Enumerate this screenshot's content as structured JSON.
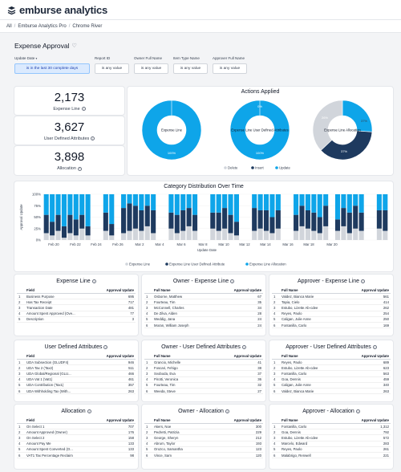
{
  "app": {
    "brand": "emburse analytics"
  },
  "breadcrumbs": [
    "All",
    "Emburse Analytics Pro",
    "Chrome River"
  ],
  "dashboard": {
    "title": "Expense Approval"
  },
  "filters": [
    {
      "label": "Update Date",
      "value": "is in the last 30 complete days",
      "active": true
    },
    {
      "label": "Report ID",
      "value": "is any value"
    },
    {
      "label": "Owner Full Name",
      "value": "is any value"
    },
    {
      "label": "Item Type Name",
      "value": "is any value"
    },
    {
      "label": "Approver Full Name",
      "value": "is any value"
    }
  ],
  "kpis": [
    {
      "value": "2,173",
      "label": "Expense Line"
    },
    {
      "value": "3,627",
      "label": "User Defined Attributes"
    },
    {
      "value": "3,898",
      "label": "Allocation"
    }
  ],
  "actions_applied": {
    "title": "Actions Applied",
    "legend": [
      "Delete",
      "Insert",
      "Update"
    ],
    "colors": {
      "Delete": "#d1d5db",
      "Insert": "#1e3a5f",
      "Update": "#0ea5e9"
    },
    "donuts": [
      {
        "name": "Expense Line",
        "delete": 0,
        "insert": 0,
        "update": 100,
        "labels": {
          "update": "100%"
        }
      },
      {
        "name": "Expense Line User Defined Attributes",
        "delete": 0,
        "insert": 0,
        "update": 100,
        "labels": {
          "update": "100%",
          "top": "0%"
        }
      },
      {
        "name": "Expense Line Allocation",
        "delete": 37,
        "insert": 37,
        "update": 26,
        "labels": {
          "update": "26%",
          "insert": "37%",
          "delete": "37%"
        }
      }
    ]
  },
  "chart_data": {
    "type": "bar",
    "title": "Category Distribution Over Time",
    "ylabel": "Approval Update",
    "xlabel": "Update Date",
    "ylim": [
      0,
      100
    ],
    "yticks": [
      "0%",
      "25%",
      "50%",
      "75%",
      "100%"
    ],
    "xticks": [
      "Feb 20",
      "Feb 22",
      "Feb 24",
      "Feb 26",
      "Mar 2",
      "Mar 4",
      "Mar 6",
      "Mar 8",
      "Mar 10",
      "Mar 12",
      "Mar 14",
      "Mar 16",
      "Mar 18",
      "Mar 20"
    ],
    "stacked": true,
    "percent": true,
    "series": [
      {
        "name": "Expense Line",
        "color": "#d1d5db"
      },
      {
        "name": "Expense Line User Defined Attribute",
        "color": "#1e3a5f"
      },
      {
        "name": "Expense Line Allocation",
        "color": "#0ea5e9"
      }
    ],
    "bars": [
      [
        15,
        40,
        45
      ],
      [
        10,
        30,
        60
      ],
      [
        20,
        35,
        45
      ],
      [
        5,
        25,
        70
      ],
      [
        15,
        40,
        45
      ],
      [
        10,
        35,
        55
      ],
      [
        25,
        30,
        45
      ],
      [
        10,
        20,
        70
      ],
      [
        0,
        0,
        0
      ],
      [
        0,
        0,
        0
      ],
      [
        20,
        40,
        40
      ],
      [
        10,
        25,
        65
      ],
      [
        0,
        0,
        0
      ],
      [
        15,
        55,
        30
      ],
      [
        20,
        60,
        20
      ],
      [
        25,
        50,
        25
      ],
      [
        20,
        45,
        35
      ],
      [
        30,
        45,
        25
      ],
      [
        15,
        50,
        35
      ],
      [
        0,
        0,
        0
      ],
      [
        0,
        0,
        0
      ],
      [
        25,
        35,
        40
      ],
      [
        15,
        40,
        45
      ],
      [
        20,
        45,
        35
      ],
      [
        30,
        40,
        30
      ],
      [
        20,
        35,
        45
      ],
      [
        0,
        0,
        0
      ],
      [
        0,
        0,
        0
      ],
      [
        25,
        35,
        40
      ],
      [
        20,
        40,
        40
      ],
      [
        25,
        45,
        30
      ],
      [
        15,
        40,
        45
      ],
      [
        10,
        30,
        60
      ],
      [
        0,
        0,
        0
      ],
      [
        0,
        0,
        0
      ],
      [
        20,
        50,
        30
      ],
      [
        25,
        40,
        35
      ],
      [
        20,
        45,
        35
      ],
      [
        15,
        35,
        50
      ],
      [
        25,
        40,
        35
      ],
      [
        0,
        0,
        0
      ],
      [
        0,
        0,
        0
      ],
      [
        20,
        35,
        45
      ],
      [
        30,
        45,
        25
      ],
      [
        25,
        40,
        35
      ],
      [
        20,
        40,
        40
      ],
      [
        15,
        35,
        50
      ],
      [
        30,
        45,
        25
      ],
      [
        0,
        0,
        0
      ],
      [
        20,
        25,
        55
      ],
      [
        30,
        40,
        30
      ],
      [
        15,
        45,
        40
      ],
      [
        25,
        50,
        25
      ],
      [
        20,
        40,
        40
      ],
      [
        0,
        0,
        0
      ],
      [
        0,
        0,
        0
      ],
      [
        25,
        40,
        35
      ],
      [
        20,
        45,
        35
      ]
    ]
  },
  "tables": [
    {
      "title": "Expense Line",
      "col1": "Field",
      "col2": "Approval Update",
      "rows": [
        [
          "1",
          "Business Purpose",
          "695"
        ],
        [
          "2",
          "Has Tax Receipt",
          "717"
        ],
        [
          "3",
          "Transaction Date",
          "481"
        ],
        [
          "4",
          "Amount Spent Approved (Ove...",
          "77"
        ],
        [
          "5",
          "Description",
          "3"
        ]
      ]
    },
    {
      "title": "Owner - Expense Line",
      "col1": "Full Name",
      "col2": "Approval Update",
      "rows": [
        [
          "1",
          "Osborne, Matthew",
          "67"
        ],
        [
          "2",
          "Fourteau, Tim",
          "35"
        ],
        [
          "3",
          "McConnell, Charles",
          "34"
        ],
        [
          "4",
          "De Zilva, Alden",
          "28"
        ],
        [
          "5",
          "Weddig, Jana",
          "24"
        ],
        [
          "6",
          "Moran, William Joseph",
          "24"
        ]
      ]
    },
    {
      "title": "Approver - Expense Line",
      "col1": "Full Name",
      "col2": "Approval Update",
      "rows": [
        [
          "1",
          "Valdez, Bianca Marie",
          "561"
        ],
        [
          "2",
          "Tapia, Cielo",
          "414"
        ],
        [
          "3",
          "Estubo, Lizette Ab-cdee",
          "262"
        ],
        [
          "4",
          "Reyes, Paolo",
          "254"
        ],
        [
          "5",
          "Caligan, Julie Anne",
          "250"
        ],
        [
          "6",
          "Fontanilla, Carlo",
          "169"
        ]
      ]
    },
    {
      "title": "User Defined Attributes",
      "col1": "Field",
      "col2": "Approval Update",
      "rows": [
        [
          "1",
          "UDA Subsection (GLUDF4)",
          "946"
        ],
        [
          "2",
          "UDA Tax 2 (Tax2)",
          "511"
        ],
        [
          "3",
          "UDA Global/Regional (GLU...",
          "466"
        ],
        [
          "4",
          "UDA Vat 1 (Vat1)",
          "461"
        ],
        [
          "5",
          "UDA Contribution (Tax1)",
          "357"
        ],
        [
          "6",
          "UDA Withholding Tax (With...",
          "263"
        ]
      ]
    },
    {
      "title": "Owner - User Defined Attributes",
      "col1": "Full Name",
      "col2": "Approval Update",
      "rows": [
        [
          "1",
          "Grancio, Michelle",
          "41"
        ],
        [
          "2",
          "Foscari, Fehigo",
          "38"
        ],
        [
          "3",
          "Svoboda, Eva",
          "37"
        ],
        [
          "4",
          "Pirotti, Veronica",
          "36"
        ],
        [
          "5",
          "Fourteau, Tim",
          "32"
        ],
        [
          "6",
          "Weeda, Steve",
          "27"
        ]
      ]
    },
    {
      "title": "Approver - User Defined Attributes",
      "col1": "Full Name",
      "col2": "Approval Update",
      "rows": [
        [
          "1",
          "Reyes, Paolo",
          "689"
        ],
        [
          "2",
          "Estubo, Lizette Ab-cdee",
          "623"
        ],
        [
          "3",
          "Fontanilla, Carlo",
          "563"
        ],
        [
          "4",
          "Goa, Dennis",
          "459"
        ],
        [
          "5",
          "Caligan, Julie Anne",
          "340"
        ],
        [
          "6",
          "Valdez, Bianca Marie",
          "263"
        ]
      ]
    },
    {
      "title": "Allocation",
      "col1": "Field",
      "col2": "Approval Update",
      "rows": [
        [
          "1",
          "On Select 1",
          "707"
        ],
        [
          "2",
          "Amount Approved (Owner)",
          "176"
        ],
        [
          "3",
          "On Select 2",
          "158"
        ],
        [
          "4",
          "Amount Pay Me",
          "133"
        ],
        [
          "5",
          "Amount Spent Converted (O...",
          "133"
        ],
        [
          "6",
          "VAT1 Tax Percentage Reclaim",
          "98"
        ]
      ]
    },
    {
      "title": "Owner - Allocation",
      "col1": "Full Name",
      "col2": "Approval Update",
      "rows": [
        [
          "1",
          "Akers, Noe",
          "300"
        ],
        [
          "2",
          "Pedretti, Patrizia",
          "229"
        ],
        [
          "3",
          "George, Sheryn",
          "212"
        ],
        [
          "4",
          "Abrum, Taylor",
          "193"
        ],
        [
          "5",
          "Orozco, Samantha",
          "123"
        ],
        [
          "6",
          "Vince, Sam",
          "120"
        ]
      ]
    },
    {
      "title": "Approver - Allocation",
      "col1": "Full Name",
      "col2": "Approval Update",
      "rows": [
        [
          "1",
          "Fontanilla, Carlo",
          "1,312"
        ],
        [
          "2",
          "Goa, Dennis",
          "792"
        ],
        [
          "3",
          "Estubo, Lizette Ab-cdee",
          "572"
        ],
        [
          "4",
          "Marcelo, Edward",
          "283"
        ],
        [
          "5",
          "Reyes, Paolo",
          "261"
        ],
        [
          "6",
          "Malabrigo, Renwell",
          "221"
        ]
      ]
    }
  ]
}
